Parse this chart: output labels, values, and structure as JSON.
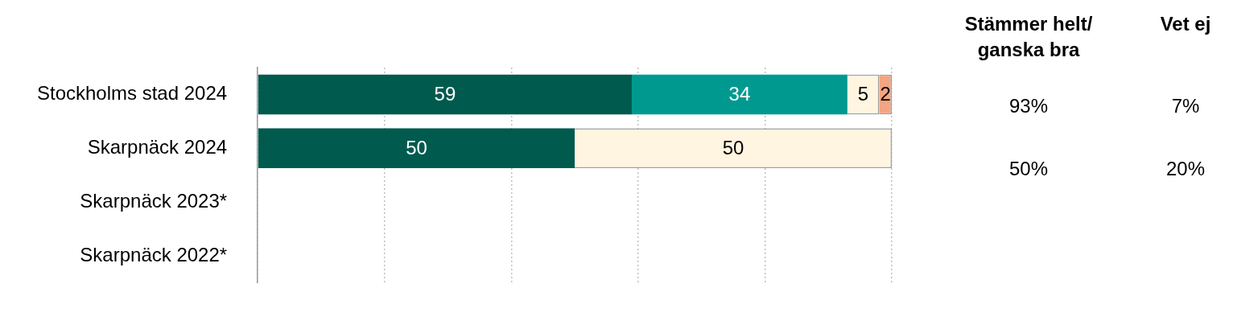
{
  "chart_data": {
    "type": "bar",
    "orientation": "horizontal",
    "stacked": true,
    "categories": [
      "Stockholms stad 2024",
      "Skarpnäck 2024",
      "Skarpnäck 2023*",
      "Skarpnäck 2022*"
    ],
    "series": [
      {
        "color": "#005a4e",
        "values": [
          59,
          50,
          null,
          null
        ]
      },
      {
        "color": "#009990",
        "values": [
          34,
          null,
          null,
          null
        ]
      },
      {
        "color": "#fff5e1",
        "values": [
          5,
          50,
          null,
          null
        ]
      },
      {
        "color": "#f4a582",
        "values": [
          2,
          null,
          null,
          null
        ]
      }
    ],
    "xlim": [
      0,
      100
    ],
    "xticks": [
      {
        "value": 0,
        "label": null
      },
      {
        "value": 20,
        "label": null
      },
      {
        "value": 40,
        "label": null
      },
      {
        "value": 60,
        "label": null
      },
      {
        "value": 80,
        "label": null
      },
      {
        "value": 100,
        "label": null
      }
    ],
    "grid": "x",
    "tick_labels": "y",
    "data_labels": true,
    "annotations": [
      "Stämmer helt/ ganska bra",
      "Vet ej",
      "93%",
      "7%",
      "50%",
      "20%"
    ]
  }
}
